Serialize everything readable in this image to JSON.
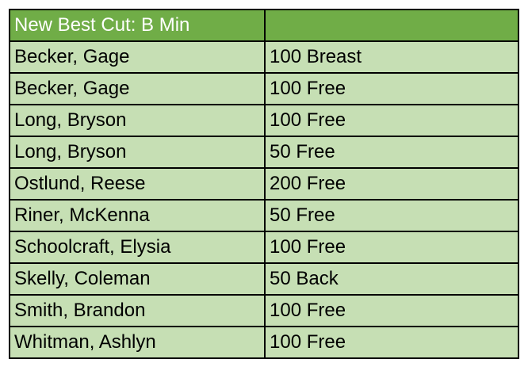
{
  "table": {
    "header": [
      "New Best Cut: B Min",
      ""
    ],
    "rows": [
      [
        "Becker, Gage",
        "100 Breast"
      ],
      [
        "Becker, Gage",
        "100 Free"
      ],
      [
        "Long, Bryson",
        "100 Free"
      ],
      [
        "Long, Bryson",
        "50 Free"
      ],
      [
        "Ostlund, Reese",
        "200 Free"
      ],
      [
        "Riner, McKenna",
        "50 Free"
      ],
      [
        "Schoolcraft, Elysia",
        "100 Free"
      ],
      [
        "Skelly, Coleman",
        "50 Back"
      ],
      [
        "Smith, Brandon",
        "100 Free"
      ],
      [
        "Whitman, Ashlyn",
        "100 Free"
      ]
    ]
  },
  "colors": {
    "header_bg": "#70AD47",
    "row_bg": "#C6DFB4"
  }
}
